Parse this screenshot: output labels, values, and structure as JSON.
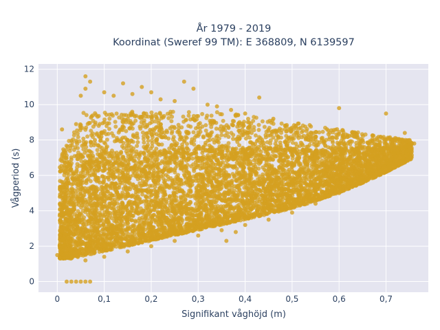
{
  "chart_data": {
    "type": "scatter",
    "title_line1": "År 1979 - 2019",
    "title_line2": "Koordinat (Sweref 99 TM): E 368809, N 6139597",
    "xlabel": "Signifikant våghöjd (m)",
    "ylabel": "Vågperiod (s)",
    "xlim": [
      -0.04,
      0.79
    ],
    "ylim": [
      -0.6,
      12.3
    ],
    "xticks": [
      0,
      0.1,
      0.2,
      0.3,
      0.4,
      0.5,
      0.6,
      0.7
    ],
    "xtick_labels": [
      "0",
      "0,1",
      "0,2",
      "0,3",
      "0,4",
      "0,5",
      "0,6",
      "0,7"
    ],
    "yticks": [
      0,
      2,
      4,
      6,
      8,
      10,
      12
    ],
    "ytick_labels": [
      "0",
      "2",
      "4",
      "6",
      "8",
      "10",
      "12"
    ],
    "grid": true,
    "background_color": "#e5e5f0",
    "marker_color": "#d4a020",
    "series": [
      {
        "points": [
          [
            0.0,
            1.5
          ],
          [
            0.01,
            8.6
          ],
          [
            0.02,
            4.2
          ],
          [
            0.02,
            6.3
          ],
          [
            0.03,
            3.9
          ],
          [
            0.03,
            6.9
          ],
          [
            0.04,
            8.9
          ],
          [
            0.05,
            10.5
          ],
          [
            0.06,
            11.6
          ],
          [
            0.07,
            11.3
          ],
          [
            0.06,
            10.9
          ],
          [
            0.1,
            10.7
          ],
          [
            0.12,
            10.5
          ],
          [
            0.14,
            11.2
          ],
          [
            0.16,
            10.6
          ],
          [
            0.18,
            11.0
          ],
          [
            0.2,
            10.7
          ],
          [
            0.22,
            10.3
          ],
          [
            0.25,
            10.2
          ],
          [
            0.27,
            11.3
          ],
          [
            0.29,
            10.9
          ],
          [
            0.32,
            10.0
          ],
          [
            0.34,
            9.9
          ],
          [
            0.37,
            9.7
          ],
          [
            0.4,
            9.5
          ],
          [
            0.43,
            10.4
          ],
          [
            0.46,
            9.2
          ],
          [
            0.5,
            8.7
          ],
          [
            0.55,
            8.2
          ],
          [
            0.6,
            9.8
          ],
          [
            0.65,
            8.0
          ],
          [
            0.7,
            9.5
          ],
          [
            0.74,
            8.4
          ],
          [
            0.75,
            8.0
          ],
          [
            0.02,
            0.0
          ],
          [
            0.03,
            0.0
          ],
          [
            0.04,
            0.0
          ],
          [
            0.05,
            0.0
          ],
          [
            0.06,
            0.0
          ],
          [
            0.07,
            0.0
          ],
          [
            0.02,
            1.8
          ],
          [
            0.06,
            1.2
          ],
          [
            0.1,
            1.4
          ],
          [
            0.15,
            1.7
          ],
          [
            0.2,
            2.0
          ],
          [
            0.25,
            2.3
          ],
          [
            0.3,
            2.6
          ],
          [
            0.35,
            2.9
          ],
          [
            0.4,
            3.2
          ],
          [
            0.45,
            3.5
          ],
          [
            0.5,
            3.9
          ],
          [
            0.55,
            4.4
          ],
          [
            0.6,
            5.0
          ],
          [
            0.65,
            5.6
          ],
          [
            0.7,
            6.3
          ],
          [
            0.73,
            7.0
          ],
          [
            0.76,
            7.8
          ],
          [
            0.38,
            2.8
          ],
          [
            0.36,
            2.3
          ],
          [
            0.05,
            3.0
          ],
          [
            0.05,
            5.0
          ],
          [
            0.05,
            7.0
          ],
          [
            0.08,
            2.5
          ],
          [
            0.08,
            4.0
          ],
          [
            0.08,
            6.0
          ],
          [
            0.08,
            8.0
          ],
          [
            0.1,
            3.0
          ],
          [
            0.1,
            5.0
          ],
          [
            0.1,
            7.0
          ],
          [
            0.1,
            9.0
          ],
          [
            0.15,
            2.5
          ],
          [
            0.15,
            4.0
          ],
          [
            0.15,
            6.0
          ],
          [
            0.15,
            8.0
          ],
          [
            0.2,
            3.0
          ],
          [
            0.2,
            4.5
          ],
          [
            0.2,
            6.5
          ],
          [
            0.2,
            8.5
          ],
          [
            0.25,
            3.5
          ],
          [
            0.25,
            5.0
          ],
          [
            0.25,
            7.0
          ],
          [
            0.3,
            3.5
          ],
          [
            0.3,
            5.0
          ],
          [
            0.3,
            7.0
          ],
          [
            0.35,
            4.0
          ],
          [
            0.35,
            5.5
          ],
          [
            0.35,
            7.0
          ],
          [
            0.4,
            4.0
          ],
          [
            0.4,
            5.5
          ],
          [
            0.4,
            7.0
          ],
          [
            0.45,
            4.5
          ],
          [
            0.45,
            6.0
          ],
          [
            0.45,
            7.5
          ],
          [
            0.5,
            5.0
          ],
          [
            0.5,
            6.5
          ],
          [
            0.5,
            7.5
          ],
          [
            0.55,
            5.5
          ],
          [
            0.55,
            7.0
          ],
          [
            0.6,
            6.0
          ],
          [
            0.6,
            7.5
          ],
          [
            0.65,
            6.5
          ],
          [
            0.65,
            7.5
          ],
          [
            0.7,
            7.0
          ],
          [
            0.7,
            8.0
          ]
        ]
      }
    ]
  }
}
